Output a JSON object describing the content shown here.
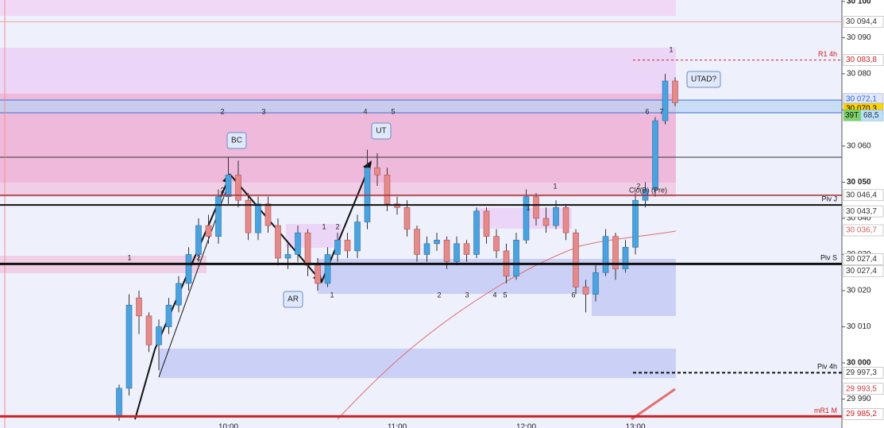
{
  "chart_data": {
    "type": "candlestick",
    "categories": [
      null,
      null,
      null,
      null,
      null,
      null,
      null,
      null,
      null,
      null,
      null,
      "10:00",
      null,
      null,
      null,
      null,
      null,
      null,
      null,
      null,
      null,
      null,
      null,
      null,
      null,
      null,
      null,
      null,
      "11:00",
      null,
      null,
      null,
      null,
      null,
      null,
      null,
      null,
      null,
      null,
      null,
      null,
      "12:00",
      null,
      null,
      null,
      null,
      null,
      null,
      null,
      null,
      null,
      null,
      "13:00",
      null,
      null,
      null,
      null
    ],
    "open": [
      29985,
      29993,
      30018,
      30013,
      30005,
      30010,
      30016,
      30022,
      30030,
      30038,
      30035,
      30046,
      30052,
      30045,
      30036,
      30044,
      30038,
      30029,
      30030,
      30036,
      30027,
      30022,
      30030,
      30034,
      30031,
      30039,
      30054,
      30052,
      30044,
      30043,
      30037,
      30030,
      30033,
      30034,
      30028,
      30033,
      30030,
      30042,
      30035,
      30031,
      30024,
      30034,
      30046,
      30040,
      30038,
      30043,
      30036,
      30021,
      30019,
      30025,
      30035,
      30026,
      30032,
      30045,
      30048,
      30067,
      30078
    ],
    "high": [
      29994,
      30019,
      30020,
      30014,
      30012,
      30018,
      30024,
      30032,
      30040,
      30041,
      30048,
      30057,
      30056,
      30047,
      30046,
      30046,
      30040,
      30033,
      30038,
      30037,
      30029,
      30032,
      30036,
      30036,
      30041,
      30059,
      30058,
      30054,
      30046,
      30045,
      30038,
      30035,
      30036,
      30035,
      30035,
      30034,
      30043,
      30043,
      30037,
      30033,
      30036,
      30048,
      30047,
      30043,
      30045,
      30044,
      30037,
      30023,
      30027,
      30037,
      30036,
      30034,
      30047,
      30050,
      30068,
      30080,
      30079
    ],
    "low": [
      29984,
      29991,
      30008,
      30003,
      29998,
      30008,
      30014,
      30020,
      30028,
      30033,
      30033,
      30044,
      30043,
      30034,
      30034,
      30036,
      30027,
      30026,
      30028,
      30024,
      30020,
      30021,
      30028,
      30029,
      30029,
      30037,
      30049,
      30042,
      30041,
      30035,
      30028,
      30028,
      30031,
      30026,
      30027,
      30028,
      30029,
      30033,
      30029,
      30022,
      30023,
      30033,
      30038,
      30036,
      30037,
      30034,
      30019,
      30014,
      30017,
      30024,
      30023,
      30025,
      30030,
      30043,
      30046,
      30066,
      30071
    ],
    "close": [
      29993,
      30016,
      30013,
      30005,
      30010,
      30016,
      30022,
      30030,
      30038,
      30035,
      30046,
      30052,
      30045,
      30036,
      30044,
      30038,
      30029,
      30030,
      30036,
      30027,
      30022,
      30030,
      30034,
      30031,
      30039,
      30054,
      30052,
      30044,
      30043,
      30037,
      30030,
      30033,
      30034,
      30028,
      30033,
      30030,
      30042,
      30035,
      30031,
      30024,
      30034,
      30046,
      30040,
      30038,
      30043,
      30036,
      30021,
      30019,
      30025,
      30035,
      30026,
      30032,
      30045,
      30048,
      30067,
      30078,
      30072
    ],
    "up_color": "#4aa3df",
    "down_color": "#e58a8a",
    "ylim": [
      29982,
      30100.4
    ],
    "yticks": [
      {
        "value": 29990,
        "label": "29 990"
      },
      {
        "value": 30000,
        "label": "30 000"
      },
      {
        "value": 30010,
        "label": "30 010"
      },
      {
        "value": 30020,
        "label": "30 020"
      },
      {
        "value": 30030,
        "label": "30 030"
      },
      {
        "value": 30040,
        "label": "30 040"
      },
      {
        "value": 30050,
        "label": "30 050"
      },
      {
        "value": 30060,
        "label": "30 060"
      },
      {
        "value": 30070,
        "label": "30 070"
      },
      {
        "value": 30080,
        "label": "30 080"
      },
      {
        "value": 30090,
        "label": "30 090"
      },
      {
        "value": 30100,
        "label": "30 100"
      }
    ],
    "tags": [
      {
        "value": 30094.4,
        "label": "30 094,4",
        "color": "#333333",
        "background": "#ffffff"
      },
      {
        "value": 30083.8,
        "label": "30 083,8",
        "color": "#d02020",
        "background": "#ffffff",
        "name": "R1 4h"
      },
      {
        "value": 30072.1,
        "label": "30 072,1",
        "color": "#3366cc",
        "background": "#dfe8ff"
      },
      {
        "value": 30070.3,
        "label": "30 070,3",
        "color": "#000000",
        "background": "#ffd400"
      },
      {
        "value": 30068.5,
        "label": "68,5",
        "color": "#333333",
        "background": "#b8e0ff",
        "prefix": "39T"
      },
      {
        "value": 30046.4,
        "label": "30 046,4",
        "color": "#333333",
        "background": "#ffffff"
      },
      {
        "value": 30043.7,
        "label": "30 043,7",
        "color": "#333333",
        "background": "#ffffff",
        "name": "Piv J"
      },
      {
        "value": 30036.7,
        "label": "30 036,7",
        "color": "#d06060",
        "background": "#ffffff"
      },
      {
        "value": 30027.4,
        "label": "30 027,4",
        "color": "#333333",
        "background": "#ffffff"
      },
      {
        "value": 30027.4,
        "label": "30 027,4",
        "color": "#333333",
        "background": "#ffffff",
        "name": "Piv S"
      },
      {
        "value": 29997.3,
        "label": "29 997,3",
        "color": "#333333",
        "background": "#ffffff",
        "name": "Piv 4h"
      },
      {
        "value": 29993.5,
        "label": "29 993,5",
        "color": "#d04040",
        "background": "#ffffff"
      },
      {
        "value": 29985.2,
        "label": "29 985,2",
        "color": "#d02020",
        "background": "#ffffff",
        "name": "mR1 M"
      }
    ],
    "boxes": [
      "BC",
      "UT",
      "AR",
      "UTAD?"
    ],
    "wave_labels": [
      "2",
      "3",
      "4",
      "5",
      "6",
      "7",
      "1",
      "1",
      "2",
      "2",
      "1",
      "2",
      "1",
      "2",
      "3",
      "4",
      "5",
      "1",
      "1",
      "6",
      "2"
    ],
    "note": "Clo(B) (Pre)"
  }
}
